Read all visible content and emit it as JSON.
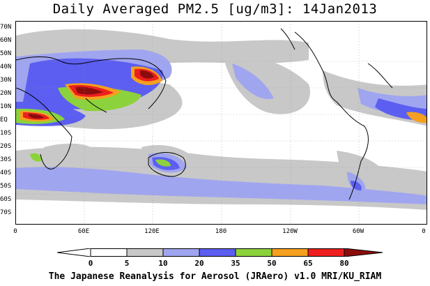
{
  "title": "Daily Averaged PM2.5 [ug/m3]: 14Jan2013",
  "footer": "The Japanese Reanalysis for Aerosol (JRAero) v1.0 MRI/KU_RIAM",
  "lat_labels": [
    "70N",
    "60N",
    "50N",
    "40N",
    "30N",
    "20N",
    "10N",
    "EQ",
    "10S",
    "20S",
    "30S",
    "40S",
    "50S",
    "60S",
    "70S"
  ],
  "lon_labels": [
    "0",
    "60E",
    "120E",
    "180",
    "120W",
    "60W",
    "0"
  ],
  "colorbar": {
    "ticks": [
      "0",
      "5",
      "10",
      "20",
      "35",
      "50",
      "65",
      "80"
    ],
    "colors": [
      "#ffffff",
      "#c8c8c8",
      "#a0a5f0",
      "#5b5ef0",
      "#8cd23c",
      "#f5a01e",
      "#ee1e1e",
      "#8c0c0c"
    ]
  }
}
